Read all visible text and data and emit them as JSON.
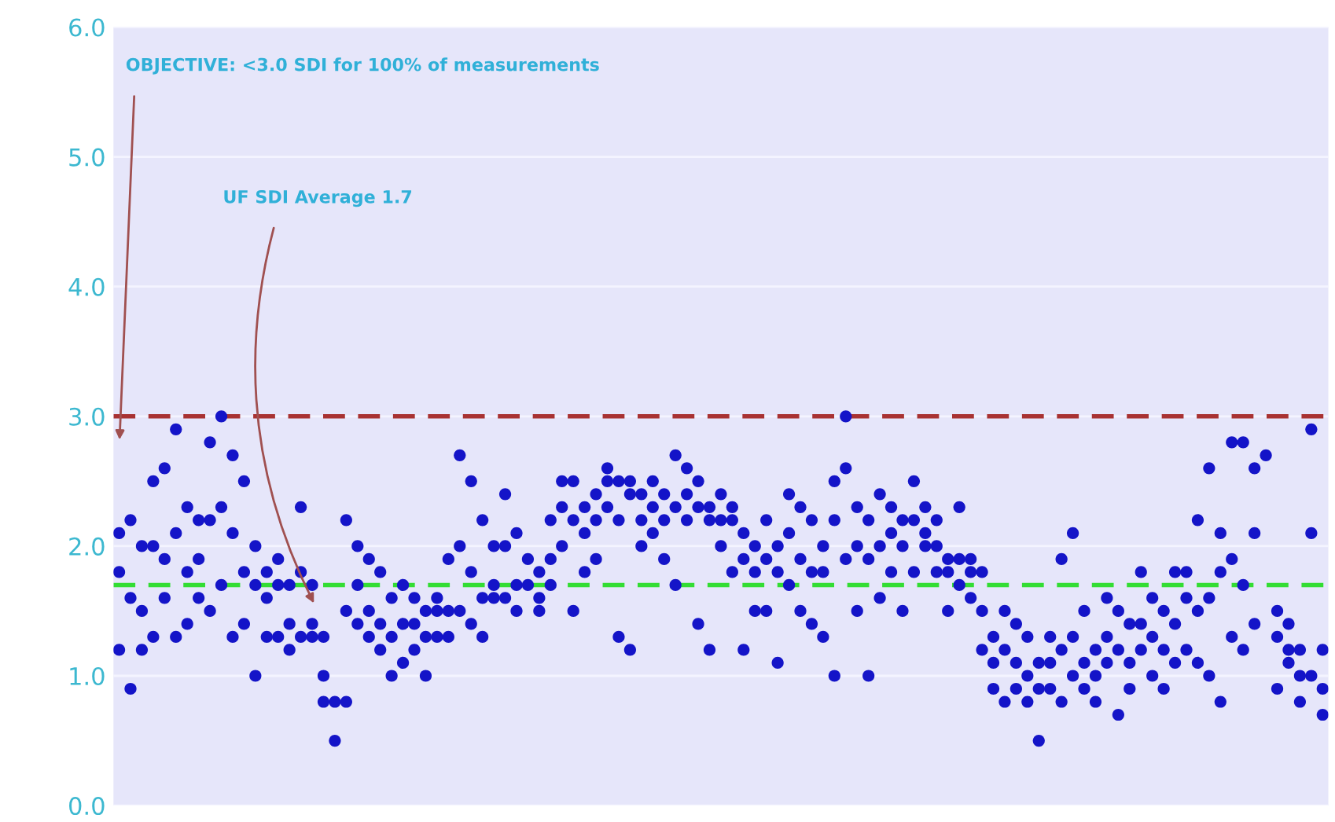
{
  "chart_data": {
    "type": "scatter",
    "categories": [
      null,
      null,
      null,
      null,
      null,
      null,
      null,
      null,
      null,
      null,
      null,
      null,
      null,
      null,
      null,
      null,
      null,
      null,
      null,
      null,
      null,
      null,
      null,
      null,
      null,
      null,
      null,
      null,
      null,
      null,
      null,
      null,
      null,
      null,
      null,
      null,
      null,
      null,
      null,
      null,
      null,
      null,
      null,
      null,
      null,
      null,
      null,
      null,
      null,
      null,
      null,
      null,
      null,
      null,
      null,
      null,
      null,
      null,
      null,
      null,
      null,
      null,
      null,
      null,
      null,
      null,
      null,
      null,
      null,
      null,
      null,
      null,
      null,
      null,
      null,
      null,
      null,
      null,
      null,
      null,
      null,
      null,
      null,
      null,
      null,
      null,
      null,
      null,
      null,
      null,
      null,
      null,
      null,
      null,
      null,
      null,
      null,
      null,
      null,
      null,
      null,
      null,
      null,
      null,
      null,
      null,
      null
    ],
    "series": [
      {
        "color": "#1414c8",
        "values": [
          2.1,
          2.2,
          2.0,
          2.5,
          2.6,
          2.9,
          2.3,
          2.2,
          2.8,
          3.0,
          2.7,
          2.5,
          2.0,
          1.8,
          1.9,
          1.7,
          2.3,
          1.7,
          1.3,
          null,
          2.2,
          2.0,
          1.9,
          1.8,
          1.6,
          1.7,
          1.6,
          1.5,
          1.6,
          1.9,
          2.7,
          2.5,
          2.2,
          2.0,
          2.4,
          2.1,
          1.9,
          1.8,
          2.2,
          2.5,
          2.5,
          2.3,
          2.4,
          2.6,
          2.5,
          2.5,
          2.4,
          2.5,
          2.4,
          2.7,
          2.6,
          2.5,
          2.3,
          2.4,
          2.3,
          2.1,
          2.0,
          2.2,
          2.0,
          2.4,
          2.3,
          2.2,
          2.0,
          2.5,
          3.0,
          2.3,
          2.2,
          2.4,
          2.3,
          2.2,
          2.5,
          2.3,
          2.2,
          1.9,
          2.3,
          1.9,
          1.8,
          1.3,
          1.5,
          1.4,
          1.3,
          1.1,
          1.3,
          1.9,
          2.1,
          1.5,
          1.2,
          1.6,
          1.5,
          1.4,
          1.8,
          1.6,
          1.5,
          1.8,
          1.8,
          2.2,
          2.6,
          2.1,
          2.8,
          2.8,
          2.6,
          2.7,
          1.5,
          1.4,
          1.2,
          2.9,
          1.2
        ]
      },
      {
        "color": "#1414c8",
        "values": [
          1.8,
          1.6,
          1.5,
          2.0,
          1.9,
          2.1,
          1.8,
          1.9,
          2.2,
          2.3,
          2.1,
          1.8,
          1.7,
          1.6,
          1.7,
          1.4,
          1.8,
          1.4,
          1.0,
          0.8,
          1.5,
          1.7,
          1.5,
          1.4,
          1.3,
          1.4,
          1.4,
          1.3,
          1.5,
          1.5,
          2.0,
          1.8,
          1.6,
          1.7,
          2.0,
          1.7,
          1.7,
          1.6,
          1.9,
          2.3,
          2.2,
          2.1,
          2.2,
          2.5,
          2.2,
          2.4,
          2.2,
          2.3,
          2.2,
          2.3,
          2.4,
          2.3,
          2.2,
          2.2,
          2.2,
          1.9,
          1.8,
          1.9,
          1.8,
          2.1,
          1.9,
          1.8,
          1.8,
          2.2,
          2.6,
          2.0,
          1.9,
          2.0,
          2.1,
          2.0,
          2.2,
          2.1,
          2.0,
          1.8,
          1.9,
          1.8,
          1.5,
          1.1,
          1.2,
          1.1,
          1.0,
          0.9,
          1.1,
          1.2,
          1.3,
          1.1,
          1.0,
          1.3,
          1.2,
          1.1,
          1.4,
          1.3,
          1.2,
          1.4,
          1.6,
          1.5,
          1.6,
          1.8,
          1.9,
          1.7,
          2.1,
          null,
          1.3,
          1.2,
          1.0,
          2.1,
          0.9
        ]
      },
      {
        "color": "#1414c8",
        "values": [
          1.2,
          0.9,
          1.2,
          1.3,
          1.6,
          1.3,
          1.4,
          1.6,
          1.5,
          1.7,
          1.3,
          1.4,
          1.0,
          1.3,
          1.3,
          1.2,
          1.3,
          1.3,
          0.8,
          0.5,
          0.8,
          1.4,
          1.3,
          1.2,
          1.0,
          1.1,
          1.2,
          1.0,
          1.3,
          1.3,
          1.5,
          1.4,
          1.3,
          1.6,
          1.6,
          1.5,
          null,
          1.5,
          1.7,
          2.0,
          1.5,
          1.8,
          1.9,
          2.3,
          1.3,
          1.2,
          2.0,
          2.1,
          1.9,
          1.7,
          2.2,
          1.4,
          1.2,
          2.0,
          1.8,
          1.2,
          1.5,
          1.5,
          1.1,
          1.7,
          1.5,
          1.4,
          1.3,
          1.0,
          1.9,
          1.5,
          1.0,
          1.6,
          1.8,
          1.5,
          1.8,
          2.0,
          1.8,
          1.5,
          1.7,
          1.6,
          1.2,
          0.9,
          0.8,
          0.9,
          0.8,
          0.5,
          0.9,
          0.8,
          1.0,
          0.9,
          0.8,
          1.1,
          0.7,
          0.9,
          1.2,
          1.0,
          0.9,
          1.1,
          1.2,
          1.1,
          1.0,
          0.8,
          1.3,
          1.2,
          1.4,
          null,
          0.9,
          1.1,
          0.8,
          1.0,
          0.7
        ]
      }
    ],
    "marker": "circle",
    "ylim": [
      0,
      6
    ],
    "yticks": [
      {
        "value": 0,
        "label": "0.0"
      },
      {
        "value": 1,
        "label": "1.0"
      },
      {
        "value": 2,
        "label": "2.0"
      },
      {
        "value": 3,
        "label": "3.0"
      },
      {
        "value": 4,
        "label": "4.0"
      },
      {
        "value": 5,
        "label": "5.0"
      },
      {
        "value": 6,
        "label": "6.0"
      }
    ],
    "tick_labels": "y",
    "grid": "y",
    "ref_lines": [
      {
        "axis": "y",
        "value": 3.0,
        "color": "#a83232",
        "line_style": "dashed"
      },
      {
        "axis": "y",
        "value": 1.7,
        "color": "#33dd33",
        "line_style": "dashed"
      }
    ],
    "annotations": [
      "OBJECTIVE: <3.0 SDI for 100% of measurements",
      "UF SDI Average 1.7"
    ]
  }
}
